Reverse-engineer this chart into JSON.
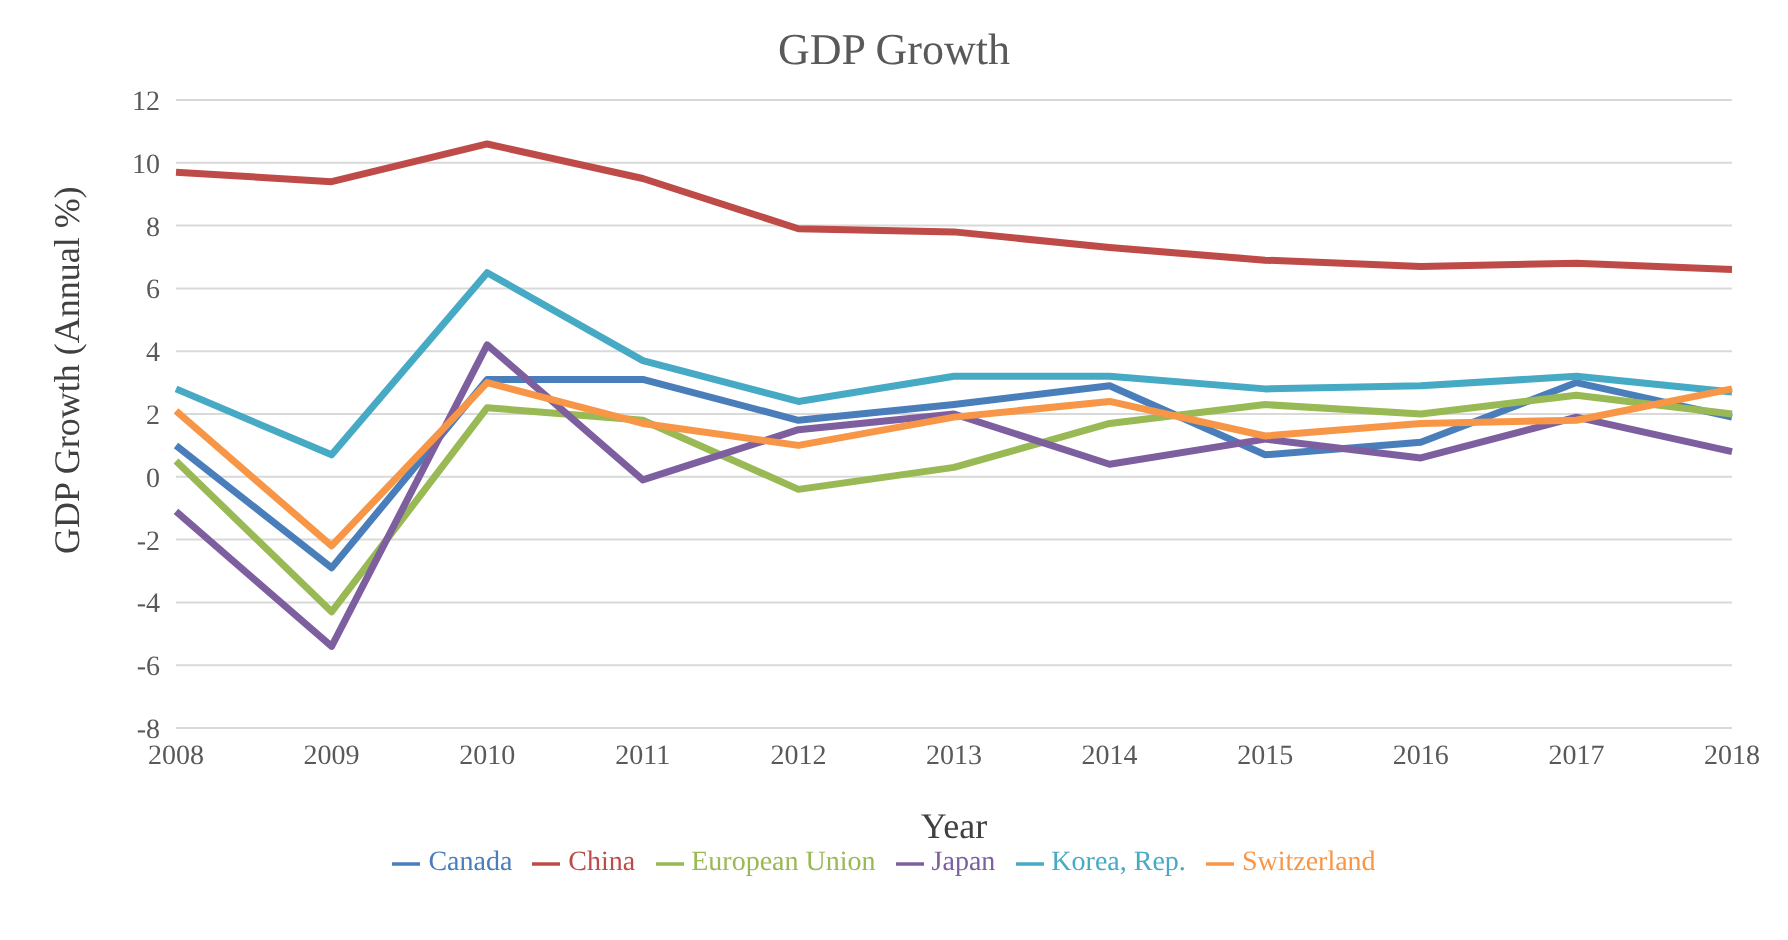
{
  "chart_data": {
    "type": "line",
    "title": "GDP Growth",
    "xlabel": "Year",
    "ylabel": "GDP Growth (Annual %)",
    "categories": [
      "2008",
      "2009",
      "2010",
      "2011",
      "2012",
      "2013",
      "2014",
      "2015",
      "2016",
      "2017",
      "2018"
    ],
    "series": [
      {
        "name": "Canada",
        "color": "#4a7ebb",
        "values": [
          1.0,
          -2.9,
          3.1,
          3.1,
          1.8,
          2.3,
          2.9,
          0.7,
          1.1,
          3.0,
          1.9
        ]
      },
      {
        "name": "China",
        "color": "#be4b48",
        "values": [
          9.7,
          9.4,
          10.6,
          9.5,
          7.9,
          7.8,
          7.3,
          6.9,
          6.7,
          6.8,
          6.6
        ]
      },
      {
        "name": "European Union",
        "color": "#98b954",
        "values": [
          0.5,
          -4.3,
          2.2,
          1.8,
          -0.4,
          0.3,
          1.7,
          2.3,
          2.0,
          2.6,
          2.0
        ]
      },
      {
        "name": "Japan",
        "color": "#7d5fa0",
        "values": [
          -1.1,
          -5.4,
          4.2,
          -0.1,
          1.5,
          2.0,
          0.4,
          1.2,
          0.6,
          1.9,
          0.8
        ]
      },
      {
        "name": "Korea, Rep.",
        "color": "#46aac5",
        "values": [
          2.8,
          0.7,
          6.5,
          3.7,
          2.4,
          3.2,
          3.2,
          2.8,
          2.9,
          3.2,
          2.7
        ]
      },
      {
        "name": "Switzerland",
        "color": "#f79646",
        "values": [
          2.1,
          -2.2,
          3.0,
          1.7,
          1.0,
          1.9,
          2.4,
          1.3,
          1.7,
          1.8,
          2.8
        ]
      }
    ],
    "ylim": [
      -8,
      12
    ],
    "yticks": [
      -8,
      -6,
      -4,
      -2,
      0,
      2,
      4,
      6,
      8,
      10,
      12
    ],
    "grid": "y",
    "legend": "bottom",
    "marker": "none",
    "line_style": "solid"
  }
}
